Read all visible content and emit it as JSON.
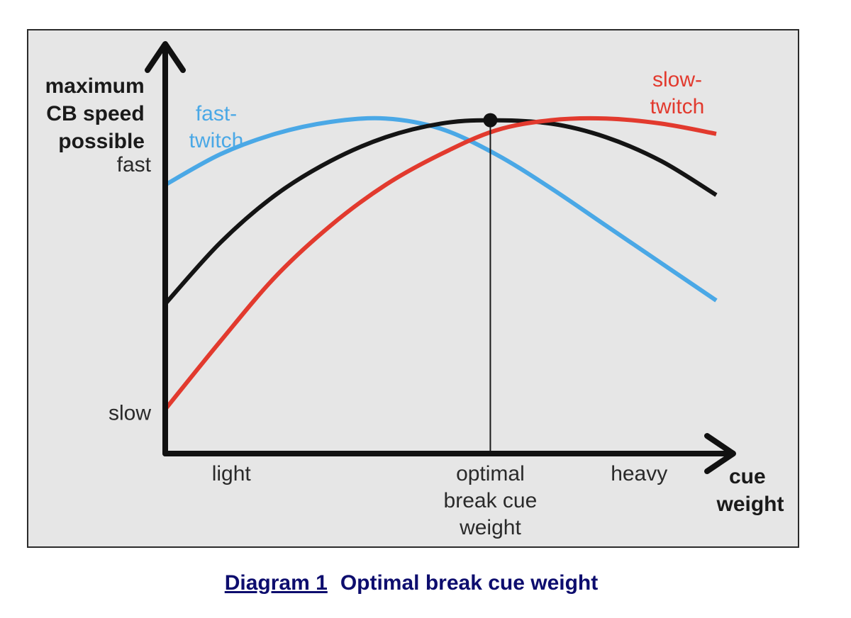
{
  "chart_data": {
    "type": "line",
    "ylabel": [
      "maximum",
      "CB speed",
      "possible"
    ],
    "xlabel": [
      "cue",
      "weight"
    ],
    "y_ticks": [
      {
        "label": "fast",
        "value": 0.85
      },
      {
        "label": "slow",
        "value": 0.12
      }
    ],
    "x_ticks": [
      {
        "label": [
          "light"
        ],
        "value": 0.12
      },
      {
        "label": [
          "optimal",
          "break cue",
          "weight"
        ],
        "value": 0.59
      },
      {
        "label": [
          "heavy"
        ],
        "value": 0.86
      }
    ],
    "xlim": [
      0,
      1
    ],
    "ylim": [
      0,
      1
    ],
    "series": [
      {
        "name": "fast-twitch",
        "label_lines": [
          "fast-",
          "twitch"
        ],
        "color": "#4aa8e6",
        "x": [
          0.0,
          0.1,
          0.2,
          0.3,
          0.4,
          0.5,
          0.6,
          0.7,
          0.8,
          0.9,
          1.0
        ],
        "y": [
          0.79,
          0.88,
          0.94,
          0.975,
          0.985,
          0.955,
          0.88,
          0.78,
          0.67,
          0.56,
          0.45
        ]
      },
      {
        "name": "combined",
        "color": "#141414",
        "x": [
          0.0,
          0.1,
          0.2,
          0.3,
          0.4,
          0.5,
          0.59,
          0.7,
          0.8,
          0.9,
          1.0
        ],
        "y": [
          0.44,
          0.62,
          0.76,
          0.86,
          0.93,
          0.97,
          0.98,
          0.97,
          0.93,
          0.86,
          0.76
        ]
      },
      {
        "name": "slow-twitch",
        "label_lines": [
          "slow-",
          "twitch"
        ],
        "color": "#e23a2e",
        "x": [
          0.0,
          0.1,
          0.2,
          0.3,
          0.4,
          0.5,
          0.6,
          0.7,
          0.8,
          0.9,
          1.0
        ],
        "y": [
          0.13,
          0.33,
          0.52,
          0.67,
          0.79,
          0.88,
          0.95,
          0.98,
          0.985,
          0.97,
          0.94
        ]
      }
    ],
    "optimum": {
      "x": 0.59,
      "y": 0.98
    }
  },
  "caption": {
    "number": "Diagram 1",
    "title": "Optimal break cue weight"
  }
}
